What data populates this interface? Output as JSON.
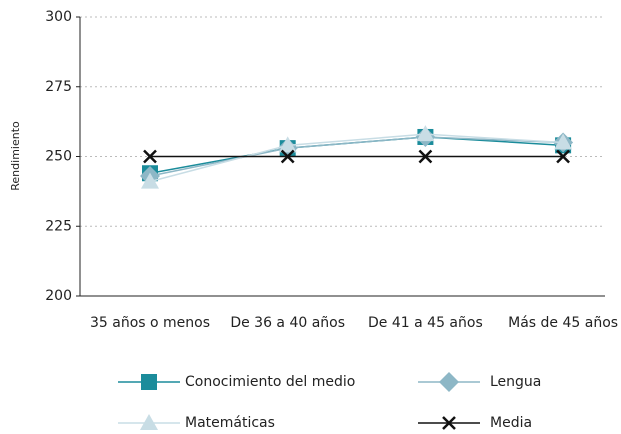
{
  "chart_data": {
    "type": "line",
    "y_label": "Rendimiento",
    "categories": [
      "35 años o menos",
      "De 36 a 40 años",
      "De 41 a 45 años",
      "Más de 45 años"
    ],
    "series": [
      {
        "name": "Conocimiento del medio",
        "color": "#1b8c9b",
        "marker": "square",
        "values": [
          244,
          253,
          257,
          254
        ]
      },
      {
        "name": "Lengua",
        "color": "#8db7c6",
        "marker": "diamond",
        "values": [
          243,
          253,
          257,
          255
        ]
      },
      {
        "name": "Matemáticas",
        "color": "#c8dde5",
        "marker": "triangle",
        "values": [
          241,
          254,
          258,
          255
        ]
      },
      {
        "name": "Media",
        "color": "#111111",
        "marker": "x",
        "values": [
          250,
          250,
          250,
          250
        ]
      }
    ],
    "ylim": [
      200,
      300
    ],
    "yticks": [
      200,
      225,
      250,
      275,
      300
    ],
    "grid": true
  }
}
